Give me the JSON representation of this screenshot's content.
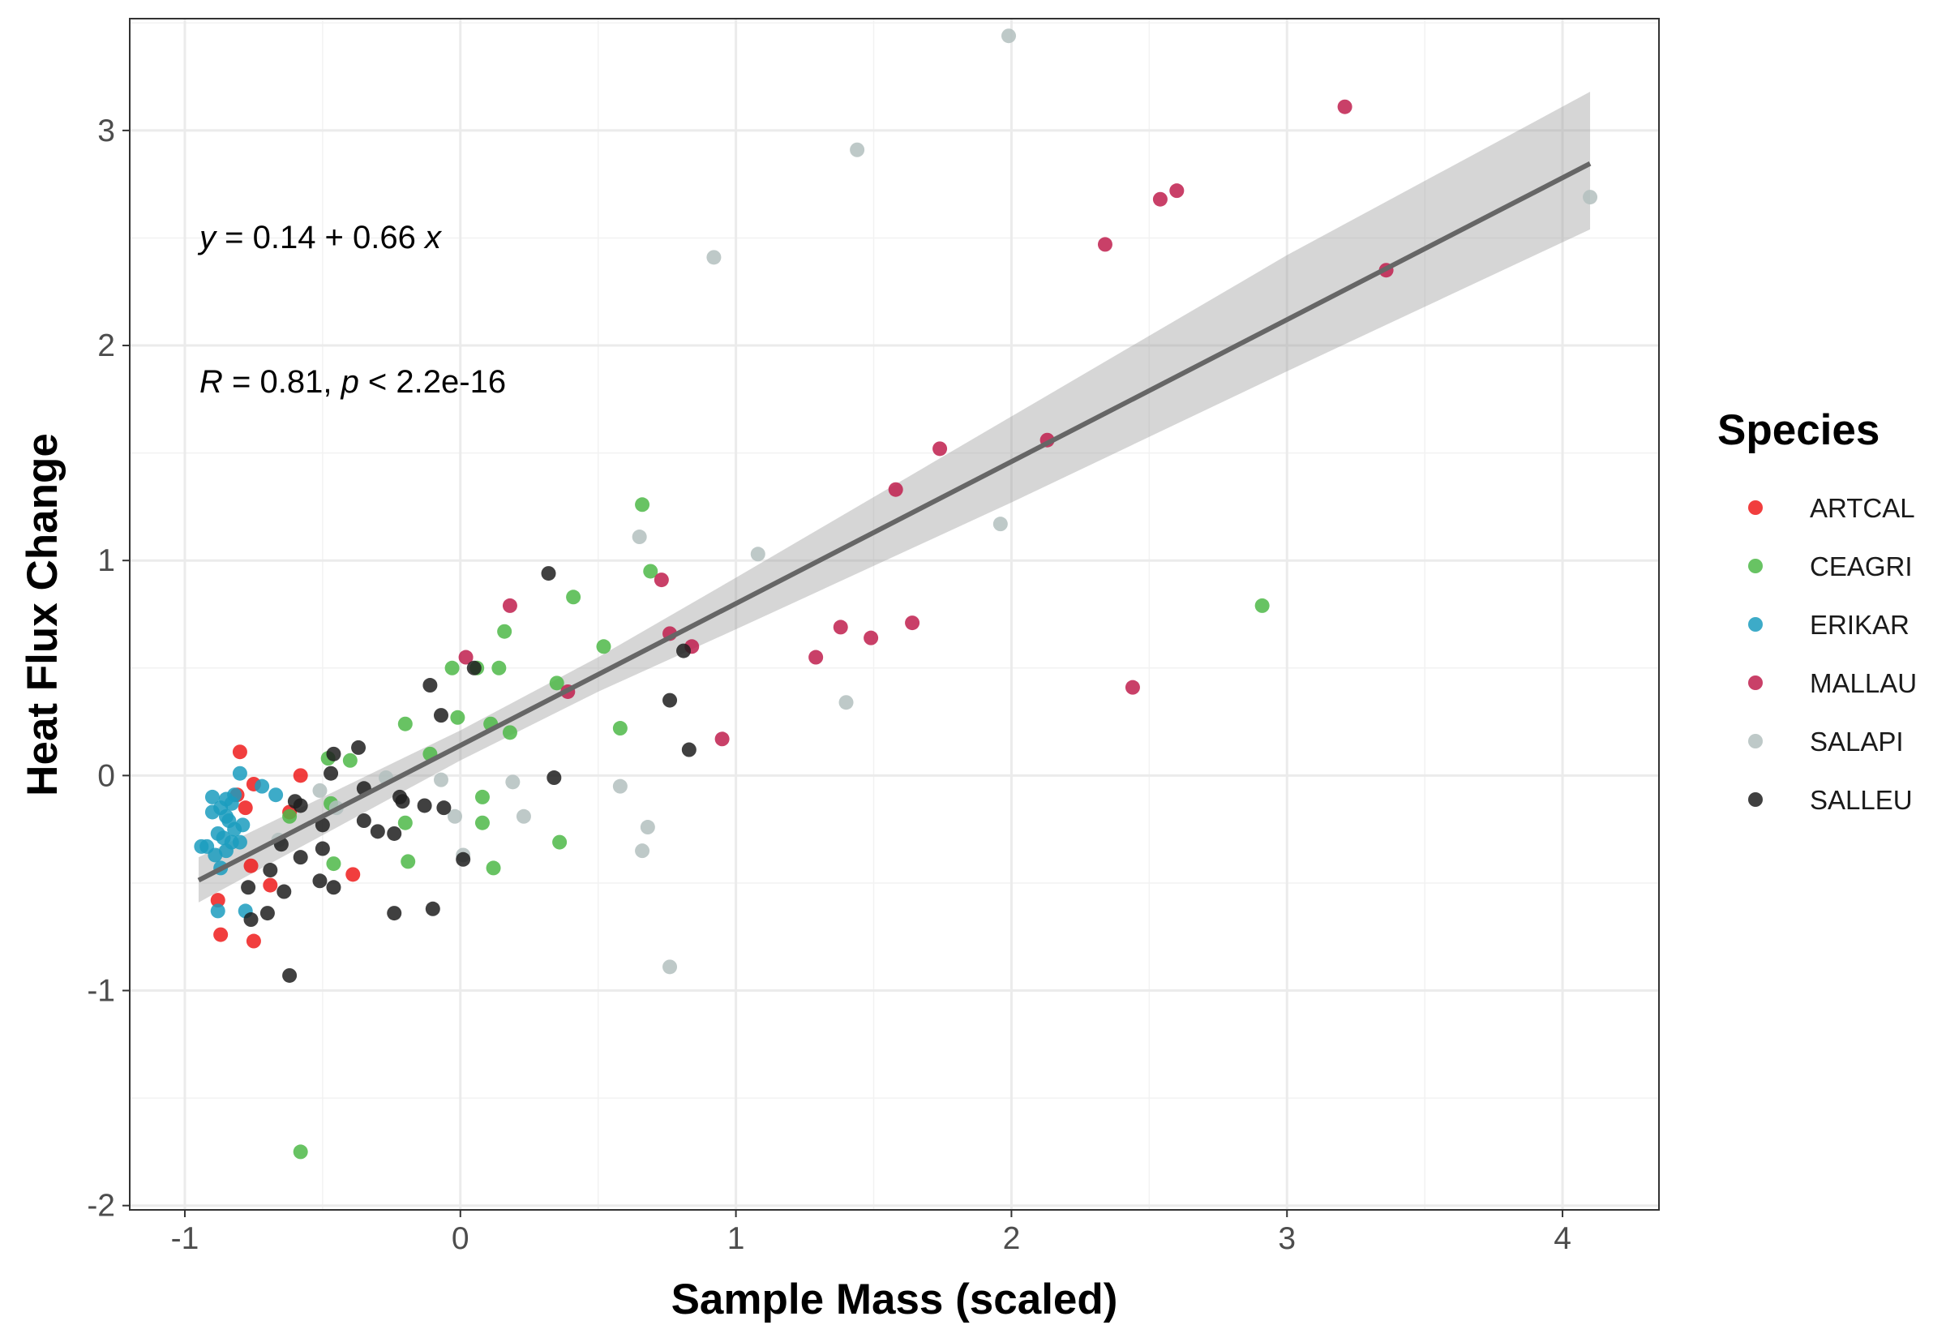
{
  "chart_data": {
    "type": "scatter",
    "xlabel": "Sample Mass (scaled)",
    "ylabel": "Heat Flux Change",
    "xlim": [
      -1.2,
      4.35
    ],
    "ylim": [
      -2.02,
      3.52
    ],
    "x_ticks": [
      -1,
      0,
      1,
      2,
      3,
      4
    ],
    "y_ticks": [
      -2,
      -1,
      0,
      1,
      2,
      3
    ],
    "x_tick_labels": [
      "-1",
      "0",
      "1",
      "2",
      "3",
      "4"
    ],
    "y_tick_labels": [
      "-2",
      "-1",
      "0",
      "1",
      "2",
      "3"
    ],
    "grid": true,
    "legend": {
      "title": "Species",
      "position": "right"
    },
    "annotations": {
      "equation": {
        "y": "y",
        "equals": " = 0.14 + 0.66 ",
        "x": "x"
      },
      "stats": {
        "r": "R",
        "r_text": " = 0.81, ",
        "p": "p",
        "p_text": " < 2.2e-16"
      }
    },
    "regression": {
      "intercept": 0.14,
      "slope": 0.66,
      "x_range": [
        -0.95,
        4.1
      ],
      "ci_band": [
        {
          "x": -0.95,
          "low": -0.59,
          "high": -0.38
        },
        {
          "x": 0.0,
          "low": 0.07,
          "high": 0.21
        },
        {
          "x": 0.5,
          "low": 0.39,
          "high": 0.55
        },
        {
          "x": 1.0,
          "low": 0.68,
          "high": 0.92
        },
        {
          "x": 2.0,
          "low": 1.27,
          "high": 1.67
        },
        {
          "x": 3.0,
          "low": 1.88,
          "high": 2.42
        },
        {
          "x": 4.1,
          "low": 2.54,
          "high": 3.18
        }
      ]
    },
    "series": [
      {
        "name": "ARTCAL",
        "color": "#EE1C1C",
        "points": [
          [
            -0.8,
            0.11
          ],
          [
            -0.58,
            0.0
          ],
          [
            -0.75,
            -0.04
          ],
          [
            -0.81,
            -0.09
          ],
          [
            -0.78,
            -0.15
          ],
          [
            -0.62,
            -0.17
          ],
          [
            -0.76,
            -0.42
          ],
          [
            -0.69,
            -0.51
          ],
          [
            -0.39,
            -0.46
          ],
          [
            -0.88,
            -0.58
          ],
          [
            -0.87,
            -0.74
          ],
          [
            -0.75,
            -0.77
          ]
        ]
      },
      {
        "name": "CEAGRI",
        "color": "#4DB848",
        "points": [
          [
            0.66,
            1.26
          ],
          [
            0.69,
            0.95
          ],
          [
            0.41,
            0.83
          ],
          [
            0.16,
            0.67
          ],
          [
            0.52,
            0.6
          ],
          [
            0.14,
            0.5
          ],
          [
            -0.03,
            0.5
          ],
          [
            0.06,
            0.5
          ],
          [
            0.35,
            0.43
          ],
          [
            -0.01,
            0.27
          ],
          [
            -0.2,
            0.24
          ],
          [
            0.58,
            0.22
          ],
          [
            0.11,
            0.24
          ],
          [
            0.18,
            0.2
          ],
          [
            -0.11,
            0.1
          ],
          [
            -0.48,
            0.08
          ],
          [
            -0.4,
            0.07
          ],
          [
            -0.47,
            -0.13
          ],
          [
            -0.2,
            -0.22
          ],
          [
            0.08,
            -0.1
          ],
          [
            0.08,
            -0.22
          ],
          [
            -0.62,
            -0.19
          ],
          [
            0.36,
            -0.31
          ],
          [
            -0.19,
            -0.4
          ],
          [
            -0.46,
            -0.41
          ],
          [
            0.12,
            -0.43
          ],
          [
            2.91,
            0.79
          ],
          [
            -0.58,
            -1.75
          ]
        ]
      },
      {
        "name": "ERIKAR",
        "color": "#1B9CBE",
        "points": [
          [
            -0.8,
            0.01
          ],
          [
            -0.72,
            -0.05
          ],
          [
            -0.67,
            -0.09
          ],
          [
            -0.82,
            -0.09
          ],
          [
            -0.9,
            -0.1
          ],
          [
            -0.85,
            -0.11
          ],
          [
            -0.83,
            -0.13
          ],
          [
            -0.87,
            -0.15
          ],
          [
            -0.9,
            -0.17
          ],
          [
            -0.85,
            -0.19
          ],
          [
            -0.84,
            -0.21
          ],
          [
            -0.79,
            -0.23
          ],
          [
            -0.82,
            -0.25
          ],
          [
            -0.88,
            -0.27
          ],
          [
            -0.86,
            -0.29
          ],
          [
            -0.83,
            -0.31
          ],
          [
            -0.8,
            -0.31
          ],
          [
            -0.92,
            -0.33
          ],
          [
            -0.94,
            -0.33
          ],
          [
            -0.85,
            -0.35
          ],
          [
            -0.89,
            -0.37
          ],
          [
            -0.87,
            -0.43
          ],
          [
            -0.78,
            -0.63
          ],
          [
            -0.88,
            -0.63
          ]
        ]
      },
      {
        "name": "MALLAU",
        "color": "#C01E4E",
        "points": [
          [
            3.21,
            3.11
          ],
          [
            2.6,
            2.72
          ],
          [
            2.54,
            2.68
          ],
          [
            2.34,
            2.47
          ],
          [
            3.36,
            2.35
          ],
          [
            2.13,
            1.56
          ],
          [
            1.74,
            1.52
          ],
          [
            1.58,
            1.33
          ],
          [
            0.73,
            0.91
          ],
          [
            0.18,
            0.79
          ],
          [
            1.64,
            0.71
          ],
          [
            1.38,
            0.69
          ],
          [
            1.49,
            0.64
          ],
          [
            0.76,
            0.66
          ],
          [
            0.84,
            0.6
          ],
          [
            1.29,
            0.55
          ],
          [
            0.02,
            0.55
          ],
          [
            0.39,
            0.39
          ],
          [
            2.44,
            0.41
          ],
          [
            0.95,
            0.17
          ]
        ]
      },
      {
        "name": "SALAPI",
        "color": "#B3BFBE",
        "points": [
          [
            1.99,
            3.44
          ],
          [
            1.44,
            2.91
          ],
          [
            0.92,
            2.41
          ],
          [
            4.1,
            2.69
          ],
          [
            1.96,
            1.17
          ],
          [
            0.65,
            1.11
          ],
          [
            1.08,
            1.03
          ],
          [
            1.4,
            0.34
          ],
          [
            -0.27,
            -0.01
          ],
          [
            0.19,
            -0.03
          ],
          [
            0.58,
            -0.05
          ],
          [
            -0.07,
            -0.02
          ],
          [
            -0.51,
            -0.07
          ],
          [
            -0.45,
            -0.15
          ],
          [
            -0.02,
            -0.19
          ],
          [
            0.23,
            -0.19
          ],
          [
            0.68,
            -0.24
          ],
          [
            0.66,
            -0.35
          ],
          [
            0.01,
            -0.37
          ],
          [
            -0.66,
            -0.3
          ],
          [
            0.76,
            -0.89
          ]
        ]
      },
      {
        "name": "SALLEU",
        "color": "#1F1F1F",
        "points": [
          [
            0.32,
            0.94
          ],
          [
            0.05,
            0.5
          ],
          [
            -0.11,
            0.42
          ],
          [
            -0.07,
            0.28
          ],
          [
            0.76,
            0.35
          ],
          [
            0.81,
            0.58
          ],
          [
            0.83,
            0.12
          ],
          [
            -0.37,
            0.13
          ],
          [
            -0.46,
            0.1
          ],
          [
            -0.47,
            0.01
          ],
          [
            0.34,
            -0.01
          ],
          [
            -0.35,
            -0.06
          ],
          [
            -0.22,
            -0.1
          ],
          [
            -0.21,
            -0.12
          ],
          [
            -0.13,
            -0.14
          ],
          [
            -0.06,
            -0.15
          ],
          [
            -0.58,
            -0.14
          ],
          [
            -0.6,
            -0.12
          ],
          [
            -0.35,
            -0.21
          ],
          [
            -0.3,
            -0.26
          ],
          [
            -0.24,
            -0.27
          ],
          [
            -0.5,
            -0.23
          ],
          [
            -0.65,
            -0.32
          ],
          [
            -0.5,
            -0.34
          ],
          [
            -0.58,
            -0.38
          ],
          [
            0.01,
            -0.39
          ],
          [
            -0.69,
            -0.44
          ],
          [
            -0.51,
            -0.49
          ],
          [
            -0.46,
            -0.52
          ],
          [
            -0.77,
            -0.52
          ],
          [
            -0.64,
            -0.54
          ],
          [
            -0.1,
            -0.62
          ],
          [
            -0.24,
            -0.64
          ],
          [
            -0.7,
            -0.64
          ],
          [
            -0.76,
            -0.67
          ],
          [
            -0.62,
            -0.93
          ]
        ]
      }
    ]
  }
}
